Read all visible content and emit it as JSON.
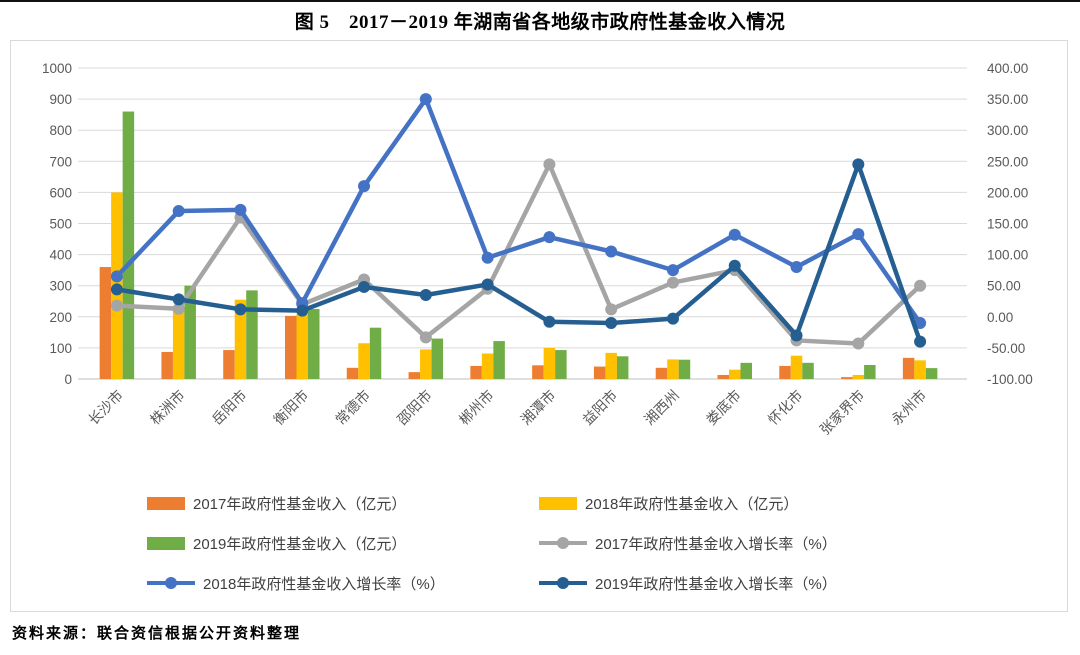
{
  "page": {
    "title": "图 5　2017－2019 年湖南省各地级市政府性基金收入情况",
    "source_note": "资料来源：联合资信根据公开资料整理"
  },
  "colors": {
    "bar_2017": "#ED7D31",
    "bar_2018": "#FFC000",
    "bar_2019": "#70AD47",
    "line_2017": "#A5A5A5",
    "line_2018": "#4472C4",
    "line_2019": "#255E91",
    "grid": "#D9D9D9",
    "axis_line": "#BFBFBF",
    "axis_text": "#595959"
  },
  "chart_data": {
    "type": "bar",
    "subtype": "grouped bars + lines, dual y-axis",
    "title": "图 5　2017－2019 年湖南省各地级市政府性基金收入情况",
    "categories": [
      "长沙市",
      "株洲市",
      "岳阳市",
      "衡阳市",
      "常德市",
      "邵阳市",
      "郴州市",
      "湘潭市",
      "益阳市",
      "湘西州",
      "娄底市",
      "怀化市",
      "张家界市",
      "永州市"
    ],
    "bar_series": [
      {
        "name": "2017年政府性基金收入（亿元）",
        "axis": "left",
        "color": "#ED7D31",
        "values": [
          360,
          87,
          93,
          203,
          36,
          22,
          42,
          44,
          40,
          36,
          13,
          42,
          6,
          68
        ]
      },
      {
        "name": "2018年政府性基金收入（亿元）",
        "axis": "left",
        "color": "#FFC000",
        "values": [
          600,
          220,
          255,
          210,
          115,
          95,
          82,
          100,
          84,
          63,
          30,
          75,
          13,
          60
        ]
      },
      {
        "name": "2019年政府性基金收入（亿元）",
        "axis": "left",
        "color": "#70AD47",
        "values": [
          860,
          300,
          285,
          225,
          165,
          130,
          122,
          93,
          73,
          62,
          52,
          52,
          45,
          35
        ]
      }
    ],
    "line_series": [
      {
        "name": "2017年政府性基金收入增长率（%）",
        "axis": "right",
        "color": "#A5A5A5",
        "values": [
          18,
          13,
          160,
          20,
          60,
          -33,
          45,
          245,
          12,
          55,
          75,
          -38,
          -43,
          50
        ]
      },
      {
        "name": "2018年政府性基金收入增长率（%）",
        "axis": "right",
        "color": "#4472C4",
        "values": [
          65,
          170,
          172,
          22,
          210,
          350,
          95,
          128,
          105,
          75,
          132,
          80,
          133,
          -10
        ]
      },
      {
        "name": "2019年政府性基金收入增长率（%）",
        "axis": "right",
        "color": "#255E91",
        "values": [
          44,
          28,
          12,
          10,
          48,
          35,
          52,
          -8,
          -10,
          -3,
          82,
          -30,
          245,
          -40
        ]
      }
    ],
    "left_axis": {
      "min": 0,
      "max": 1000,
      "step": 100,
      "ticks": [
        "0",
        "100",
        "200",
        "300",
        "400",
        "500",
        "600",
        "700",
        "800",
        "900",
        "1000"
      ]
    },
    "right_axis": {
      "min": -100,
      "max": 400,
      "step": 50,
      "ticks": [
        "-100.00",
        "-50.00",
        "0.00",
        "50.00",
        "100.00",
        "150.00",
        "200.00",
        "250.00",
        "300.00",
        "350.00",
        "400.00"
      ]
    },
    "grid": true,
    "legend_position": "bottom"
  },
  "legend": {
    "rows": [
      [
        0,
        1
      ],
      [
        2,
        3
      ],
      [
        4,
        5
      ]
    ],
    "items": [
      {
        "label": "2017年政府性基金收入（亿元）",
        "swatch": "bar",
        "color": "#ED7D31"
      },
      {
        "label": "2018年政府性基金收入（亿元）",
        "swatch": "bar",
        "color": "#FFC000"
      },
      {
        "label": "2019年政府性基金收入（亿元）",
        "swatch": "bar",
        "color": "#70AD47"
      },
      {
        "label": "2017年政府性基金收入增长率（%）",
        "swatch": "line-marker",
        "color": "#A5A5A5"
      },
      {
        "label": "2018年政府性基金收入增长率（%）",
        "swatch": "line-marker",
        "color": "#4472C4"
      },
      {
        "label": "2019年政府性基金收入增长率（%）",
        "swatch": "line-marker",
        "color": "#255E91"
      }
    ]
  }
}
